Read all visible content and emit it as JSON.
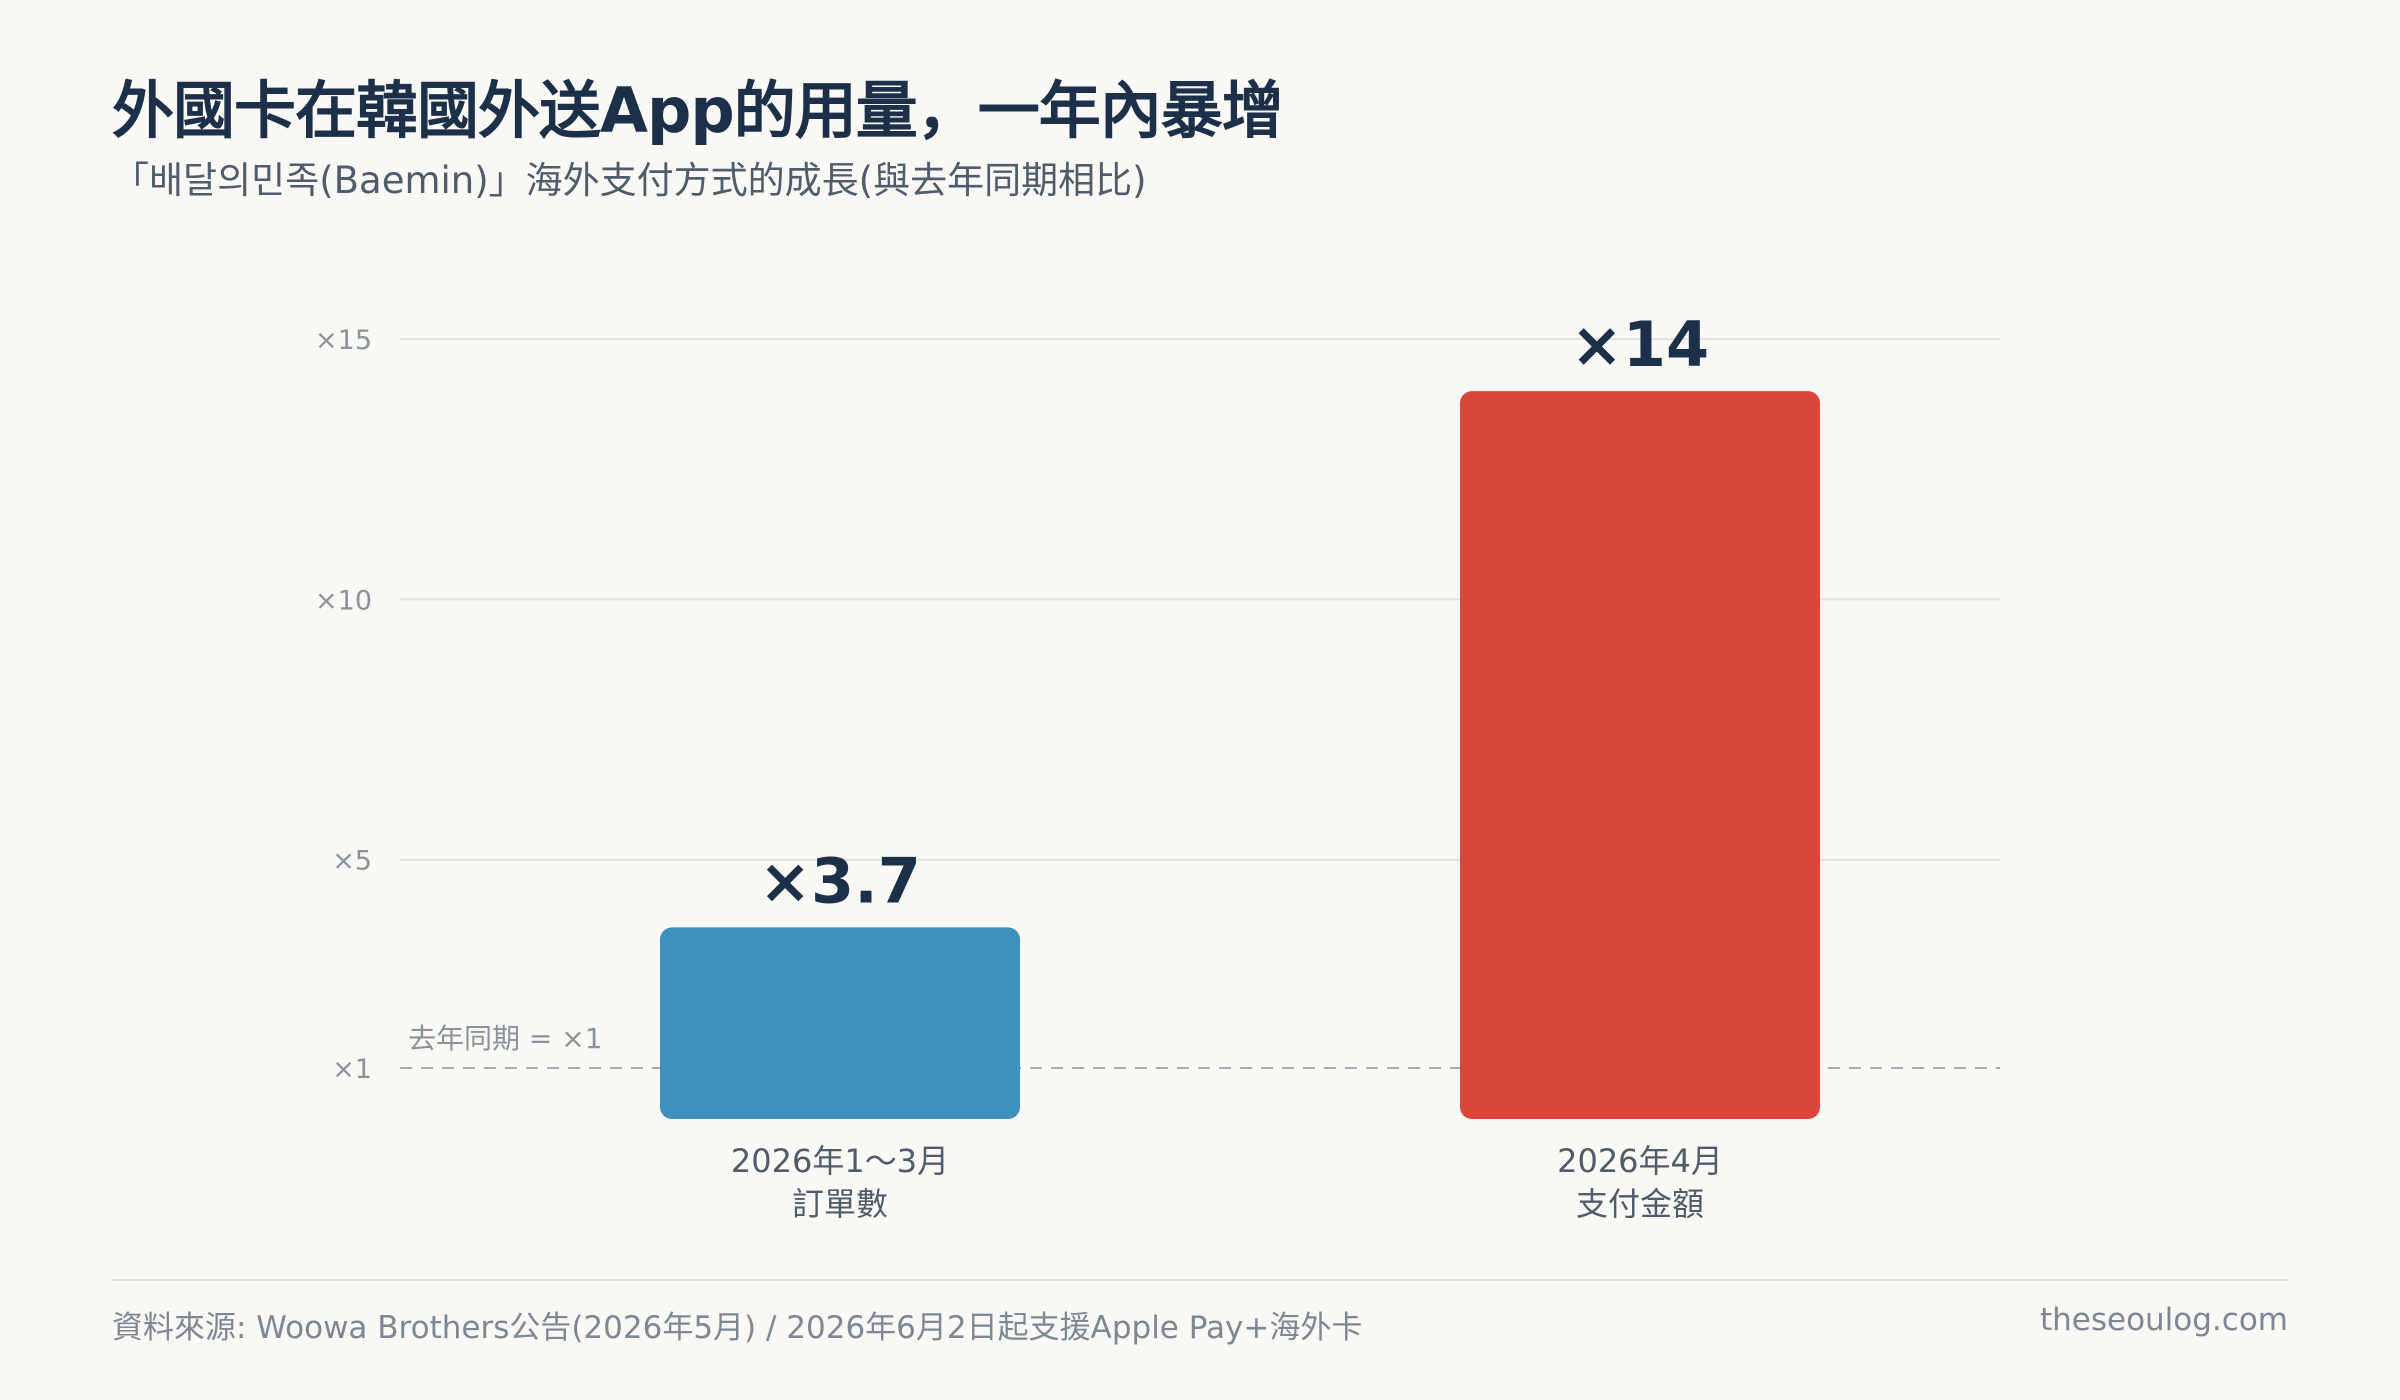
{
  "header": {
    "title": "外國卡在韓國外送App的用量，一年內暴增",
    "subtitle": "「배달의민족(Baemin)」海外支付方式的成長(與去年同期相比)"
  },
  "chart_data": {
    "type": "bar",
    "title": "外國卡在韓國外送App的用量，一年內暴增",
    "subtitle": "「배달의민족(Baemin)」海外支付方式的成長(與去年同期相比)",
    "categories": [
      {
        "line1": "2026年1〜3月",
        "line2": "訂單數"
      },
      {
        "line1": "2026年4月",
        "line2": "支付金額"
      }
    ],
    "values": [
      3.7,
      14
    ],
    "value_labels": [
      "×3.7",
      "×14"
    ],
    "colors": [
      "#3f92bf",
      "#d9473b"
    ],
    "y_ticks": [
      {
        "value": 1,
        "label": "×1"
      },
      {
        "value": 5,
        "label": "×5"
      },
      {
        "value": 10,
        "label": "×10"
      },
      {
        "value": 15,
        "label": "×15"
      }
    ],
    "ylim": [
      0,
      15
    ],
    "baseline": {
      "value": 1,
      "label": "去年同期 = ×1"
    },
    "grid": true,
    "xlabel": "",
    "ylabel": ""
  },
  "footer": {
    "source": "資料來源: Woowa Brothers公告(2026年5月) / 2026年6月2日起支援Apple Pay+海外卡",
    "site": "theseoulog.com"
  }
}
